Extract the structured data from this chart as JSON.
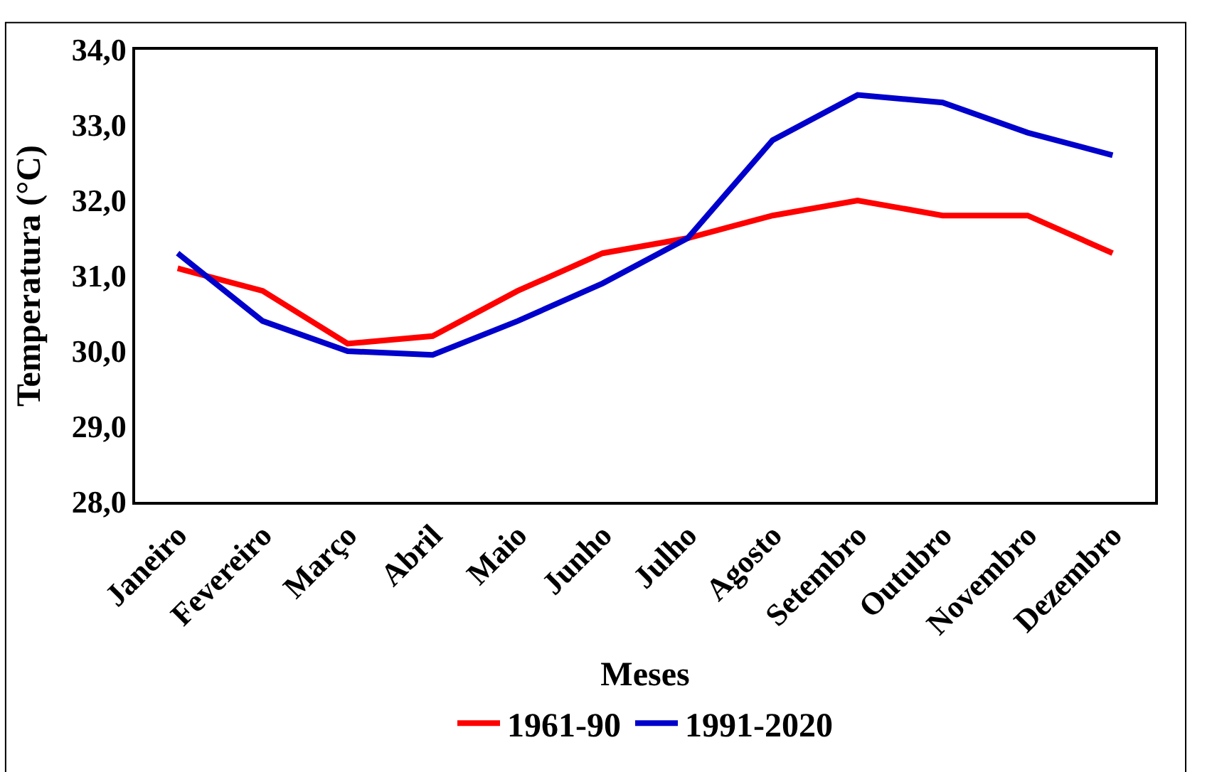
{
  "chart_data": {
    "type": "line",
    "xlabel": "Meses",
    "ylabel": "Temperatura (°C)",
    "categories": [
      "Janeiro",
      "Fevereiro",
      "Março",
      "Abril",
      "Maio",
      "Junho",
      "Julho",
      "Agosto",
      "Setembro",
      "Outubro",
      "Novembro",
      "Dezembro"
    ],
    "series": [
      {
        "name": "1961-90",
        "color": "#ff0000",
        "values": [
          31.1,
          30.8,
          30.1,
          30.2,
          30.8,
          31.3,
          31.5,
          31.8,
          32.0,
          31.8,
          31.8,
          31.3
        ]
      },
      {
        "name": "1991-2020",
        "color": "#0000cc",
        "values": [
          31.3,
          30.4,
          30.0,
          29.95,
          30.4,
          30.9,
          31.5,
          32.8,
          33.4,
          33.3,
          32.9,
          32.6
        ]
      }
    ],
    "ylim": [
      28,
      34
    ],
    "yticks": [
      {
        "value": 28,
        "label": "28,0"
      },
      {
        "value": 29,
        "label": "29,0"
      },
      {
        "value": 30,
        "label": "30,0"
      },
      {
        "value": 31,
        "label": "31,0"
      },
      {
        "value": 32,
        "label": "32,0"
      },
      {
        "value": 33,
        "label": "33,0"
      },
      {
        "value": 34,
        "label": "34,0"
      }
    ],
    "legend": "bottom",
    "marker": "none",
    "line_style": "solid"
  }
}
